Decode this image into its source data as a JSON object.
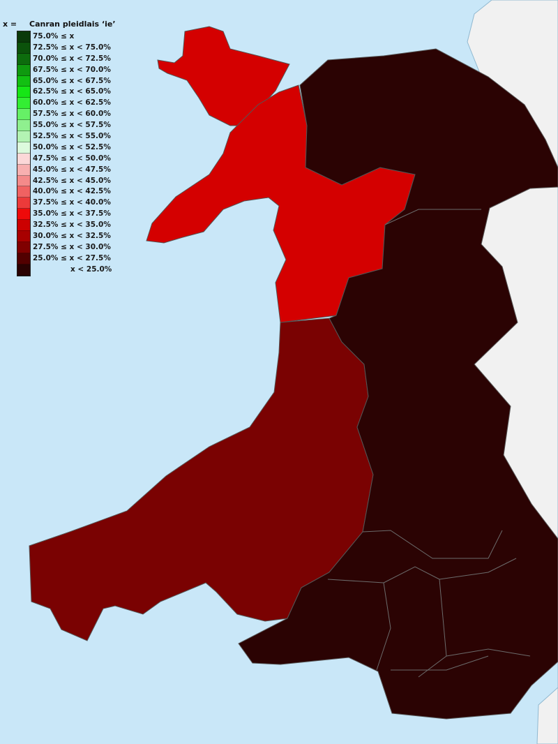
{
  "legend": {
    "variable": "x =",
    "title": "Canran pleidlais ‘ie’",
    "bins": [
      {
        "label": "75.0% ≤ x",
        "color": "#0a3a0a"
      },
      {
        "label": "72.5% ≤ x < 75.0%",
        "color": "#0b520b"
      },
      {
        "label": "70.0% ≤ x < 72.5%",
        "color": "#0d6c0d"
      },
      {
        "label": "67.5% ≤ x < 70.0%",
        "color": "#0f9a0f"
      },
      {
        "label": "65.0% ≤ x < 67.5%",
        "color": "#12c012"
      },
      {
        "label": "62.5% ≤ x < 65.0%",
        "color": "#16e616"
      },
      {
        "label": "60.0% ≤ x < 62.5%",
        "color": "#33ee33"
      },
      {
        "label": "57.5% ≤ x < 60.0%",
        "color": "#66f066"
      },
      {
        "label": "55.0% ≤ x < 57.5%",
        "color": "#8ff08f"
      },
      {
        "label": "52.5% ≤ x < 55.0%",
        "color": "#b3f3b3"
      },
      {
        "label": "50.0% ≤ x < 52.5%",
        "color": "#ddfadd"
      },
      {
        "label": "47.5% ≤ x < 50.0%",
        "color": "#fcd8d8"
      },
      {
        "label": "45.0% ≤ x < 47.5%",
        "color": "#f8b0b0"
      },
      {
        "label": "42.5% ≤ x < 45.0%",
        "color": "#f48a8a"
      },
      {
        "label": "40.0% ≤ x < 42.5%",
        "color": "#f06262"
      },
      {
        "label": "37.5% ≤ x < 40.0%",
        "color": "#ec3a3a"
      },
      {
        "label": "35.0% ≤ x < 37.5%",
        "color": "#ee0a0a"
      },
      {
        "label": "32.5% ≤ x < 35.0%",
        "color": "#cc0000"
      },
      {
        "label": "30.0% ≤ x < 32.5%",
        "color": "#a80000"
      },
      {
        "label": "27.5% ≤ x < 30.0%",
        "color": "#800000"
      },
      {
        "label": "25.0% ≤ x < 27.5%",
        "color": "#520000"
      },
      {
        "label": "x < 25.0%",
        "color": "#2a0202"
      }
    ]
  },
  "colors": {
    "sea": "#c9e7f8",
    "england": "#f1f1f1",
    "band_32_5_35": "#d40000",
    "band_27_5_30": "#7a0202",
    "band_below_25": "#2b0303",
    "border": "#6b6b6b"
  }
}
